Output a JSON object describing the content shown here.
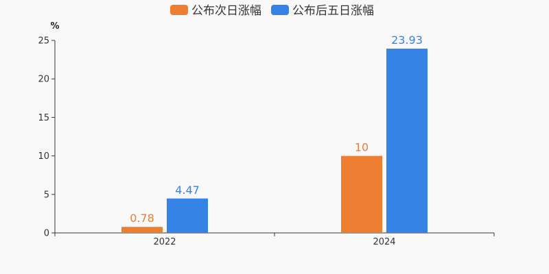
{
  "chart_data": {
    "type": "bar",
    "categories": [
      "2022",
      "2024"
    ],
    "series": [
      {
        "name": "公布次日涨幅",
        "values": [
          0.78,
          10
        ],
        "color": "#ed7d31"
      },
      {
        "name": "公布后五日涨幅",
        "values": [
          4.47,
          23.93
        ],
        "color": "#3583e4"
      }
    ],
    "data_labels": [
      [
        "0.78",
        "10"
      ],
      [
        "4.47",
        "23.93"
      ]
    ],
    "y_unit": "%",
    "ylim": [
      0,
      25
    ],
    "yticks": [
      0,
      5,
      10,
      15,
      20,
      25
    ],
    "grid": false,
    "legend": "top-center"
  }
}
